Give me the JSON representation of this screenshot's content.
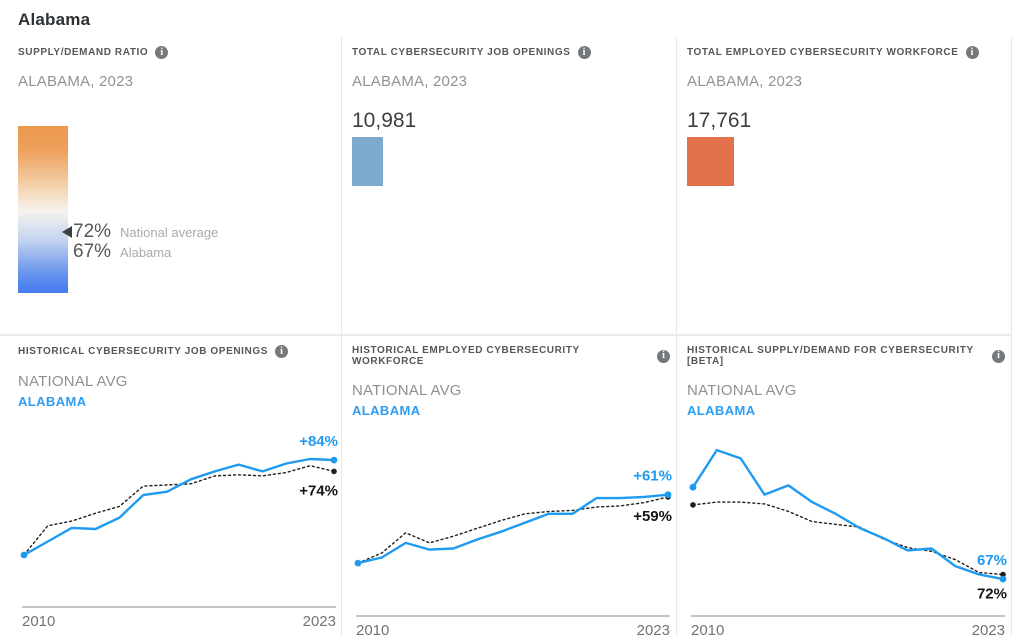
{
  "page": {
    "title": "Alabama"
  },
  "icons": {
    "info_glyph": "i"
  },
  "colors": {
    "state_line": "#1e9bf0",
    "national_line": "#1f1f1f",
    "openings_bar": "#7da9cc",
    "workforce_bar": "#e1714d",
    "gauge_top": "#ec994e",
    "gauge_bottom": "#4a80ef",
    "axis_line": "#9aa2a8",
    "axis_text": "#6f7478",
    "state_label_blue": "#2e9df4"
  },
  "panels": {
    "supply_demand": {
      "header": "SUPPLY/DEMAND RATIO",
      "subtitle": "ALABAMA, 2023",
      "national_value": "72%",
      "national_label": "National average",
      "state_value": "67%",
      "state_label": "Alabama"
    },
    "job_openings": {
      "header": "TOTAL CYBERSECURITY JOB OPENINGS",
      "subtitle": "ALABAMA, 2023",
      "value": "10,981"
    },
    "workforce": {
      "header": "TOTAL EMPLOYED CYBERSECURITY WORKFORCE",
      "subtitle": "ALABAMA, 2023",
      "value": "17,761"
    }
  },
  "chart_data": [
    {
      "type": "line",
      "title": "HISTORICAL CYBERSECURITY JOB OPENINGS",
      "x": [
        2010,
        2011,
        2012,
        2013,
        2014,
        2015,
        2016,
        2017,
        2018,
        2019,
        2020,
        2021,
        2022,
        2023
      ],
      "xtick_labels": [
        "2010",
        "2023"
      ],
      "value_format": "percent change since 2010",
      "ylim": [
        -15,
        100
      ],
      "legend_position": "top-left",
      "grid": false,
      "series": [
        {
          "name": "NATIONAL AVG",
          "style": "dotted",
          "color": "#1f1f1f",
          "values": [
            0,
            26,
            30,
            37,
            43,
            61,
            62,
            63,
            70,
            71,
            70,
            73,
            79,
            74
          ],
          "end_label": "+74%"
        },
        {
          "name": "ALABAMA",
          "style": "solid",
          "color": "#1e9bf0",
          "values": [
            0,
            12,
            24,
            23,
            33,
            53,
            56,
            67,
            74,
            80,
            74,
            81,
            85,
            84
          ],
          "end_label": "+84%"
        }
      ]
    },
    {
      "type": "line",
      "title": "HISTORICAL EMPLOYED CYBERSECURITY WORKFORCE",
      "x": [
        2010,
        2011,
        2012,
        2013,
        2014,
        2015,
        2016,
        2017,
        2018,
        2019,
        2020,
        2021,
        2022,
        2023
      ],
      "xtick_labels": [
        "2010",
        "2023"
      ],
      "value_format": "percent change since 2010",
      "ylim": [
        -16,
        100
      ],
      "legend_position": "top-left",
      "grid": false,
      "series": [
        {
          "name": "NATIONAL AVG",
          "style": "dotted",
          "color": "#1f1f1f",
          "values": [
            0,
            9,
            27,
            18,
            24,
            31,
            38,
            44,
            46,
            47,
            50,
            51,
            54,
            59
          ],
          "end_label": "+59%"
        },
        {
          "name": "ALABAMA",
          "style": "solid",
          "color": "#1e9bf0",
          "values": [
            0,
            5,
            18,
            12,
            13,
            21,
            28,
            36,
            44,
            44,
            58,
            58,
            59,
            61
          ],
          "end_label": "+61%"
        }
      ]
    },
    {
      "type": "line",
      "title": "HISTORICAL SUPPLY/DEMAND FOR CYBERSECURITY [BETA]",
      "x": [
        2010,
        2011,
        2012,
        2013,
        2014,
        2015,
        2016,
        2017,
        2018,
        2019,
        2020,
        2021,
        2022,
        2023
      ],
      "xtick_labels": [
        "2010",
        "2023"
      ],
      "value_format": "supply/demand ratio percent",
      "ylim": [
        65,
        205
      ],
      "legend_position": "top-left",
      "grid": false,
      "series": [
        {
          "name": "NATIONAL AVG",
          "style": "dotted",
          "color": "#1f1f1f",
          "values": [
            147,
            150,
            150,
            148,
            140,
            129,
            126,
            123,
            110,
            101,
            97,
            88,
            74,
            72
          ],
          "end_label": "72%"
        },
        {
          "name": "ALABAMA",
          "style": "solid",
          "color": "#1e9bf0",
          "values": [
            166,
            206,
            197,
            158,
            168,
            150,
            137,
            122,
            111,
            98,
            100,
            81,
            72,
            67
          ],
          "end_label": "67%"
        }
      ]
    }
  ]
}
